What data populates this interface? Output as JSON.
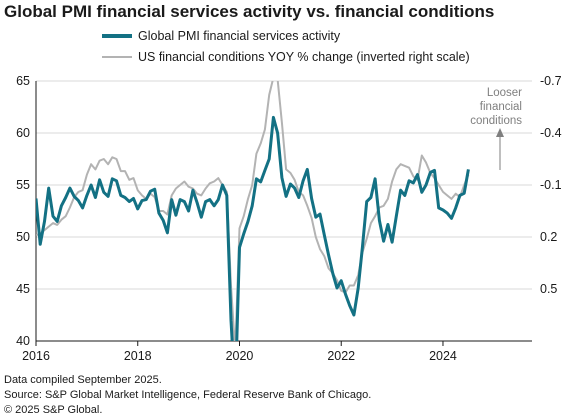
{
  "title": "Global PMI financial services activity vs. financial conditions",
  "colors": {
    "pmi": "#137184",
    "fci": "#b3b3b3",
    "axis": "#1a1a1a",
    "grid": "#d9d9d9"
  },
  "chart_data": {
    "type": "line",
    "legend_placement": "top",
    "grid": "horizontal",
    "x_ticks": [
      "2016",
      "2018",
      "2020",
      "2022",
      "2024"
    ],
    "y_left": {
      "ylim": [
        40,
        65
      ],
      "ticks": [
        "40",
        "45",
        "50",
        "55",
        "60",
        "65"
      ]
    },
    "y_right": {
      "ylim": [
        -0.7,
        0.8
      ],
      "inverted": true,
      "ticks": [
        "-0.7",
        "-0.4",
        "-0.1",
        "0.2",
        "0.5"
      ]
    },
    "annotation": [
      "Looser",
      "financial",
      "conditions"
    ],
    "series": [
      {
        "name": "Global PMI financial services activity",
        "axis": "left",
        "x_start": "2016-01",
        "frequency": "monthly",
        "values": [
          53.7,
          49.3,
          51.5,
          54.7,
          52.0,
          51.5,
          53.0,
          53.8,
          54.7,
          53.9,
          53.5,
          52.8,
          54.0,
          55.0,
          53.8,
          55.5,
          54.3,
          53.9,
          55.6,
          55.4,
          54.0,
          53.8,
          53.4,
          53.7,
          52.7,
          53.5,
          53.6,
          54.4,
          54.6,
          52.3,
          51.6,
          50.4,
          53.6,
          52.1,
          53.6,
          53.4,
          52.5,
          54.5,
          53.3,
          51.9,
          53.4,
          53.6,
          53.0,
          53.6,
          55.0,
          54.0,
          42.0,
          34.8,
          49.0,
          50.3,
          51.5,
          53.0,
          55.6,
          55.3,
          56.4,
          57.5,
          61.5,
          60.0,
          55.7,
          53.9,
          55.1,
          54.7,
          53.8,
          55.4,
          56.5,
          53.7,
          51.9,
          52.2,
          50.2,
          48.3,
          46.5,
          45.1,
          45.8,
          44.5,
          43.4,
          42.5,
          45.1,
          49.0,
          53.4,
          53.8,
          55.6,
          51.6,
          49.6,
          51.2,
          49.5,
          52.0,
          54.5,
          54.0,
          55.4,
          55.2,
          56.0,
          54.3,
          55.0,
          56.2,
          56.4,
          52.8,
          52.6,
          52.3,
          51.8,
          52.8,
          54.0,
          54.2,
          56.5
        ]
      },
      {
        "name": "US financial conditions YOY % change (inverted right scale)",
        "axis": "right",
        "x_start": "2016-01",
        "frequency": "monthly",
        "values": [
          0.19,
          0.18,
          0.16,
          0.14,
          0.12,
          0.13,
          0.1,
          0.08,
          0.03,
          -0.03,
          -0.06,
          -0.07,
          -0.16,
          -0.22,
          -0.19,
          -0.24,
          -0.25,
          -0.22,
          -0.26,
          -0.25,
          -0.18,
          -0.18,
          -0.13,
          -0.14,
          -0.07,
          -0.04,
          -0.02,
          -0.05,
          -0.03,
          0.05,
          0.05,
          0.07,
          -0.04,
          -0.08,
          -0.1,
          -0.12,
          -0.09,
          -0.08,
          -0.05,
          -0.04,
          -0.08,
          -0.11,
          -0.12,
          -0.14,
          -0.1,
          -0.06,
          0.48,
          0.86,
          0.15,
          0.08,
          -0.02,
          -0.1,
          -0.28,
          -0.34,
          -0.42,
          -0.62,
          -0.72,
          -0.71,
          -0.46,
          -0.19,
          -0.17,
          -0.13,
          -0.06,
          -0.04,
          0.02,
          0.09,
          0.2,
          0.27,
          0.31,
          0.38,
          0.41,
          0.45,
          0.51,
          0.52,
          0.48,
          0.48,
          0.42,
          0.29,
          0.21,
          0.12,
          0.08,
          0.03,
          0.02,
          -0.02,
          -0.12,
          -0.19,
          -0.22,
          -0.21,
          -0.2,
          -0.15,
          -0.13,
          -0.27,
          -0.23,
          -0.17,
          -0.14,
          -0.1,
          -0.06,
          -0.04,
          -0.02,
          -0.05,
          -0.03,
          -0.1,
          -0.16
        ]
      }
    ]
  },
  "footer": {
    "line1": "Data compiled September 2025.",
    "line2": "Source: S&P Global Market Intelligence, Federal Reserve Bank of Chicago.",
    "line3": "© 2025 S&P Global."
  }
}
